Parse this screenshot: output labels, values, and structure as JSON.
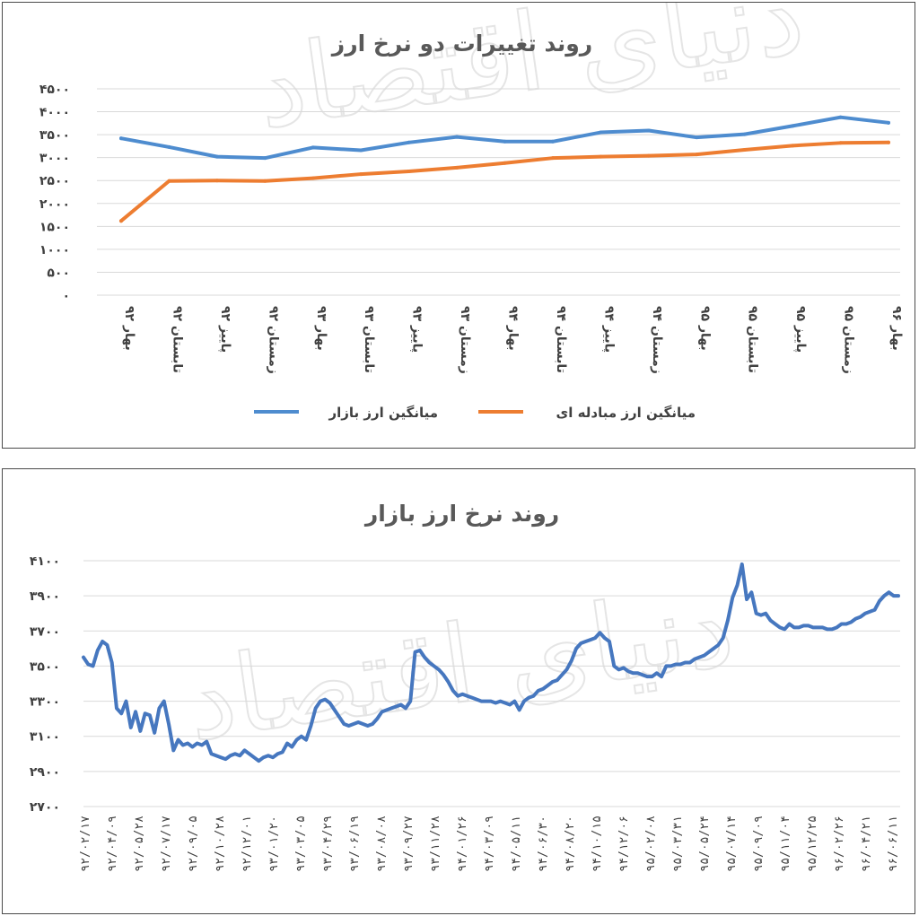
{
  "chart_data": [
    {
      "type": "line",
      "title": "روند تغییرات دو نرخ ارز",
      "categories": [
        "بهار ۹۲",
        "تابستان ۹۲",
        "پاییز ۹۲",
        "زمستان ۹۲",
        "بهار ۹۳",
        "تابستان ۹۳",
        "پاییز ۹۳",
        "زمستان ۹۳",
        "بهار ۹۴",
        "تابستان ۹۴",
        "پاییز ۹۴",
        "زمستان ۹۴",
        "بهار ۹۵",
        "تابستان ۹۵",
        "پاییز ۹۵",
        "زمستان ۹۵",
        "بهار ۹۶"
      ],
      "yticks": [
        "۰",
        "۵۰۰",
        "۱۰۰۰",
        "۱۵۰۰",
        "۲۰۰۰",
        "۲۵۰۰",
        "۳۰۰۰",
        "۳۵۰۰",
        "۴۰۰۰",
        "۴۵۰۰"
      ],
      "ylim": [
        0,
        4500
      ],
      "grid": true,
      "legend_position": "bottom",
      "series": [
        {
          "name": "میانگین ارز بازار",
          "color": "#4e8ccf",
          "values": [
            3420,
            3230,
            3020,
            2990,
            3220,
            3160,
            3330,
            3450,
            3350,
            3350,
            3550,
            3590,
            3440,
            3510,
            3690,
            3880,
            3760
          ]
        },
        {
          "name": "میانگین ارز مبادله ای",
          "color": "#ed7d31",
          "values": [
            1620,
            2490,
            2500,
            2490,
            2550,
            2640,
            2700,
            2780,
            2880,
            2990,
            3020,
            3040,
            3070,
            3170,
            3260,
            3320,
            3330
          ]
        }
      ]
    },
    {
      "type": "line",
      "title": "روند نرخ ارز بازار",
      "yticks": [
        "۲۷۰۰",
        "۲۹۰۰",
        "۳۱۰۰",
        "۳۳۰۰",
        "۳۵۰۰",
        "۳۷۰۰",
        "۳۹۰۰",
        "۴۱۰۰"
      ],
      "ylim": [
        2700,
        4100
      ],
      "grid": true,
      "xticks": [
        "۹۲/۰۲/۱۷",
        "۹۲/۰۴/۰۹",
        "۹۲/۰۵/۲۸",
        "۹۲/۰۷/۱۷",
        "۹۲/۰۹/۰۵",
        "۹۲/۱۰/۲۸",
        "۹۲/۱۲/۰۱",
        "۹۳/۰۱/۲۰",
        "۹۳/۰۳/۰۵",
        "۹۳/۰۴/۲۹",
        "۹۳/۰۶/۱۹",
        "۹۳/۰۸/۰۸",
        "۹۳/۰۹/۲۷",
        "۹۳/۱۱/۲۸",
        "۹۴/۰۱/۲۶",
        "۹۴/۰۳/۰۹",
        "۹۴/۰۵/۱۱",
        "۹۴/۰۶/۳۰",
        "۹۴/۰۸/۲۰",
        "۹۴/۱۰/۱۵",
        "۹۴/۱۲/۰۶",
        "۹۵/۰۲/۰۸",
        "۹۵/۰۳/۳۱",
        "۹۵/۰۵/۲۴",
        "۹۵/۰۷/۱۴",
        "۹۵/۰۹/۰۹",
        "۹۵/۱۱/۰۴",
        "۹۵/۱۲/۲۵",
        "۹۶/۰۲/۲۶",
        "۹۶/۰۴/۲۱",
        "۹۶/۰۶/۱۱"
      ],
      "series": [
        {
          "name": "",
          "color": "#4677bf",
          "values": [
            3550,
            3510,
            3500,
            3590,
            3640,
            3620,
            3520,
            3260,
            3230,
            3300,
            3150,
            3240,
            3130,
            3230,
            3220,
            3120,
            3260,
            3300,
            3170,
            3020,
            3080,
            3050,
            3060,
            3040,
            3060,
            3050,
            3070,
            3000,
            2990,
            2980,
            2970,
            2990,
            3000,
            2990,
            3020,
            3000,
            2980,
            2960,
            2980,
            2990,
            2980,
            3000,
            3010,
            3060,
            3040,
            3080,
            3100,
            3080,
            3160,
            3260,
            3300,
            3310,
            3290,
            3250,
            3210,
            3170,
            3160,
            3170,
            3180,
            3170,
            3160,
            3170,
            3200,
            3240,
            3250,
            3260,
            3270,
            3280,
            3260,
            3300,
            3580,
            3590,
            3550,
            3520,
            3500,
            3480,
            3450,
            3410,
            3360,
            3330,
            3340,
            3330,
            3320,
            3310,
            3300,
            3300,
            3300,
            3290,
            3300,
            3290,
            3280,
            3300,
            3250,
            3300,
            3320,
            3330,
            3360,
            3370,
            3390,
            3410,
            3420,
            3450,
            3480,
            3530,
            3600,
            3630,
            3640,
            3650,
            3660,
            3690,
            3660,
            3640,
            3500,
            3480,
            3490,
            3470,
            3460,
            3460,
            3450,
            3440,
            3440,
            3460,
            3440,
            3500,
            3500,
            3510,
            3510,
            3520,
            3520,
            3540,
            3550,
            3560,
            3580,
            3600,
            3620,
            3660,
            3760,
            3890,
            3960,
            4080,
            3880,
            3920,
            3800,
            3790,
            3800,
            3760,
            3740,
            3720,
            3710,
            3740,
            3720,
            3720,
            3730,
            3730,
            3720,
            3720,
            3720,
            3710,
            3710,
            3720,
            3740,
            3740,
            3750,
            3770,
            3780,
            3800,
            3810,
            3820,
            3870,
            3900,
            3920,
            3900,
            3900
          ]
        }
      ]
    }
  ]
}
